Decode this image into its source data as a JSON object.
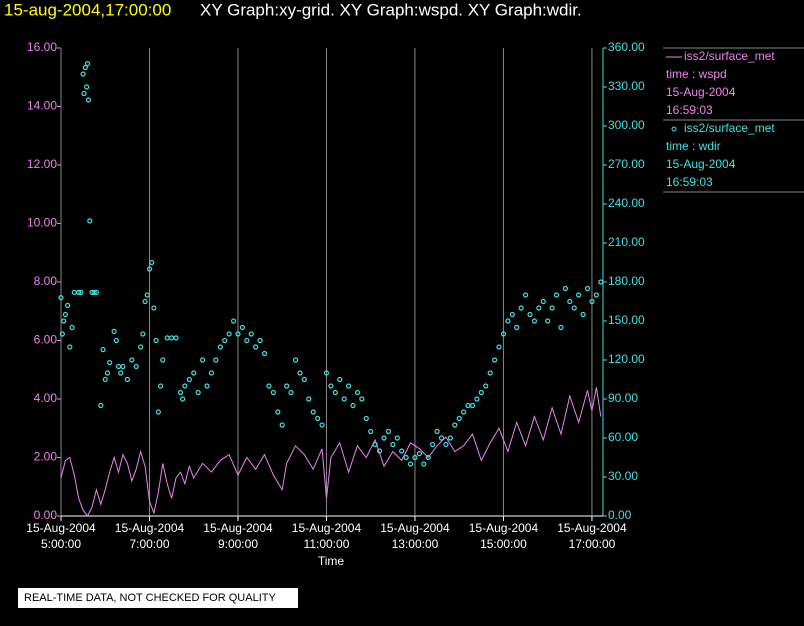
{
  "chart_data": {
    "type": "xy",
    "title_time": "15-aug-2004,17:00:00",
    "title": "XY Graph:xy-grid.  XY Graph:wspd.  XY Graph:wdir.",
    "xlabel": "Time",
    "footer": "REAL-TIME DATA, NOT CHECKED FOR QUALITY",
    "xlim": [
      5,
      17.25
    ],
    "xticks": [
      {
        "value": 5,
        "label": "15-Aug-2004 5:00:00"
      },
      {
        "value": 7,
        "label": "15-Aug-2004 7:00:00"
      },
      {
        "value": 9,
        "label": "15-Aug-2004 9:00:00"
      },
      {
        "value": 11,
        "label": "15-Aug-2004 11:00:00"
      },
      {
        "value": 13,
        "label": "15-Aug-2004 13:00:00"
      },
      {
        "value": 15,
        "label": "15-Aug-2004 15:00:00"
      },
      {
        "value": 17,
        "label": "15-Aug-2004 17:00:00"
      }
    ],
    "ylim": [
      0,
      16
    ],
    "yticks": [
      {
        "value": 0,
        "label": "0.00"
      },
      {
        "value": 2,
        "label": "2.00"
      },
      {
        "value": 4,
        "label": "4.00"
      },
      {
        "value": 6,
        "label": "6.00"
      },
      {
        "value": 8,
        "label": "8.00"
      },
      {
        "value": 10,
        "label": "10.00"
      },
      {
        "value": 12,
        "label": "12.00"
      },
      {
        "value": 14,
        "label": "14.00"
      },
      {
        "value": 16,
        "label": "16.00"
      }
    ],
    "y2lim": [
      0,
      360
    ],
    "y2ticks": [
      {
        "value": 0,
        "label": "0.00"
      },
      {
        "value": 30,
        "label": "30.00"
      },
      {
        "value": 60,
        "label": "60.00"
      },
      {
        "value": 90,
        "label": "90.00"
      },
      {
        "value": 120,
        "label": "120.00"
      },
      {
        "value": 150,
        "label": "150.00"
      },
      {
        "value": 180,
        "label": "180.00"
      },
      {
        "value": 210,
        "label": "210.00"
      },
      {
        "value": 240,
        "label": "240.00"
      },
      {
        "value": 270,
        "label": "270.00"
      },
      {
        "value": 300,
        "label": "300.00"
      },
      {
        "value": 330,
        "label": "330.00"
      },
      {
        "value": 360,
        "label": "360.00"
      }
    ],
    "grid": true,
    "series": [
      {
        "name": "iss2/surface_met",
        "legend_lines": [
          "time : wspd",
          "15-Aug-2004",
          "16:59:03"
        ],
        "color": "#ee82ee",
        "style": "line",
        "axis": "y",
        "x": [
          5.0,
          5.1,
          5.2,
          5.3,
          5.4,
          5.5,
          5.6,
          5.7,
          5.8,
          5.9,
          6.0,
          6.1,
          6.2,
          6.3,
          6.4,
          6.5,
          6.6,
          6.7,
          6.8,
          6.9,
          7.0,
          7.1,
          7.2,
          7.3,
          7.4,
          7.5,
          7.6,
          7.7,
          7.8,
          7.9,
          8.0,
          8.2,
          8.4,
          8.6,
          8.8,
          9.0,
          9.2,
          9.4,
          9.6,
          9.8,
          10.0,
          10.1,
          10.3,
          10.5,
          10.7,
          10.9,
          11.0,
          11.1,
          11.3,
          11.5,
          11.7,
          11.9,
          12.1,
          12.3,
          12.5,
          12.7,
          12.9,
          13.1,
          13.3,
          13.5,
          13.7,
          13.9,
          14.1,
          14.3,
          14.5,
          14.7,
          14.9,
          15.1,
          15.3,
          15.5,
          15.7,
          15.9,
          16.1,
          16.3,
          16.5,
          16.7,
          16.9,
          17.0,
          17.1,
          17.2
        ],
        "values": [
          1.3,
          1.9,
          2.0,
          1.4,
          0.6,
          0.2,
          0,
          0.3,
          0.9,
          0.4,
          0.9,
          1.5,
          2.0,
          1.5,
          2.1,
          1.8,
          1.2,
          1.6,
          2.2,
          1.7,
          0.5,
          0.1,
          0.8,
          1.8,
          1.1,
          0.6,
          1.3,
          1.5,
          1.1,
          1.7,
          1.3,
          1.8,
          1.5,
          1.9,
          2.1,
          1.4,
          2.0,
          1.6,
          2.1,
          1.4,
          0.9,
          1.8,
          2.4,
          2.1,
          1.6,
          2.3,
          0.6,
          2.0,
          2.5,
          1.5,
          2.4,
          2.0,
          2.6,
          1.7,
          2.2,
          1.9,
          2.5,
          2.3,
          2.0,
          2.4,
          2.7,
          2.2,
          2.4,
          2.8,
          1.9,
          2.5,
          3.0,
          2.2,
          3.2,
          2.4,
          3.4,
          2.6,
          3.7,
          2.8,
          4.1,
          3.2,
          4.3,
          3.6,
          4.4,
          3.4
        ]
      },
      {
        "name": "iss2/surface_met",
        "legend_lines": [
          "time : wdir",
          "15-Aug-2004",
          "16:59:03"
        ],
        "color": "#40e0e0",
        "style": "circle",
        "axis": "y2",
        "x": [
          5.0,
          5.03,
          5.06,
          5.1,
          5.15,
          5.2,
          5.25,
          5.3,
          5.4,
          5.45,
          5.5,
          5.52,
          5.55,
          5.58,
          5.6,
          5.62,
          5.65,
          5.7,
          5.75,
          5.8,
          5.9,
          5.95,
          6.0,
          6.05,
          6.1,
          6.2,
          6.25,
          6.3,
          6.35,
          6.4,
          6.5,
          6.6,
          6.7,
          6.8,
          6.85,
          6.9,
          6.95,
          7.0,
          7.05,
          7.1,
          7.15,
          7.2,
          7.25,
          7.3,
          7.4,
          7.5,
          7.6,
          7.7,
          7.75,
          7.8,
          7.9,
          8.0,
          8.1,
          8.2,
          8.3,
          8.4,
          8.5,
          8.6,
          8.7,
          8.8,
          8.9,
          9.0,
          9.1,
          9.2,
          9.3,
          9.4,
          9.5,
          9.6,
          9.7,
          9.8,
          9.9,
          10.0,
          10.1,
          10.2,
          10.3,
          10.4,
          10.5,
          10.6,
          10.7,
          10.8,
          10.9,
          11.0,
          11.1,
          11.2,
          11.3,
          11.4,
          11.5,
          11.6,
          11.7,
          11.8,
          11.9,
          12.0,
          12.1,
          12.2,
          12.3,
          12.4,
          12.5,
          12.6,
          12.7,
          12.8,
          12.9,
          13.0,
          13.1,
          13.2,
          13.3,
          13.4,
          13.5,
          13.6,
          13.7,
          13.8,
          13.9,
          14.0,
          14.1,
          14.2,
          14.3,
          14.4,
          14.5,
          14.6,
          14.7,
          14.8,
          14.9,
          15.0,
          15.1,
          15.2,
          15.3,
          15.4,
          15.5,
          15.6,
          15.7,
          15.8,
          15.9,
          16.0,
          16.1,
          16.2,
          16.3,
          16.4,
          16.5,
          16.6,
          16.7,
          16.8,
          16.9,
          17.0,
          17.1,
          17.2
        ],
        "values": [
          168,
          140,
          150,
          155,
          162,
          130,
          145,
          172,
          172,
          172,
          340,
          325,
          345,
          330,
          348,
          320,
          227,
          172,
          172,
          172,
          85,
          128,
          105,
          110,
          118,
          142,
          135,
          115,
          110,
          115,
          105,
          120,
          115,
          130,
          140,
          165,
          170,
          190,
          195,
          160,
          135,
          80,
          100,
          120,
          137,
          137,
          137,
          95,
          90,
          100,
          105,
          110,
          95,
          120,
          100,
          110,
          120,
          130,
          135,
          140,
          150,
          140,
          145,
          135,
          140,
          130,
          135,
          125,
          100,
          95,
          80,
          70,
          100,
          95,
          120,
          110,
          105,
          90,
          80,
          75,
          70,
          110,
          100,
          95,
          105,
          90,
          100,
          85,
          95,
          90,
          75,
          65,
          55,
          50,
          60,
          65,
          55,
          60,
          50,
          45,
          40,
          45,
          48,
          40,
          45,
          55,
          65,
          60,
          55,
          60,
          70,
          75,
          80,
          85,
          85,
          90,
          95,
          100,
          110,
          120,
          130,
          140,
          150,
          155,
          145,
          160,
          170,
          155,
          150,
          160,
          165,
          150,
          160,
          170,
          145,
          175,
          165,
          160,
          170,
          155,
          175,
          165,
          170,
          180
        ]
      }
    ]
  }
}
